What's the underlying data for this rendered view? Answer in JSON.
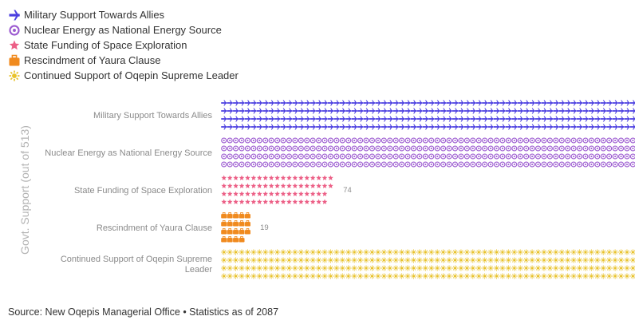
{
  "chart_data": {
    "type": "bar",
    "orientation": "horizontal",
    "style": "pictogram",
    "ylabel": "Govt. Support (out of 513)",
    "categories": [
      "Military Support Towards Allies",
      "Nuclear Energy as National Energy Source",
      "State Funding of Space Exploration",
      "Rescindment of Yaura Clause",
      "Continued Support of Oqepin Supreme Leader"
    ],
    "values": [
      406,
      288,
      74,
      19,
      427
    ],
    "icons": [
      "plane-icon",
      "atom-icon",
      "star-icon",
      "suitcase-icon",
      "sun-icon"
    ],
    "colors": [
      "#4b3fe0",
      "#9b59d0",
      "#ec5f86",
      "#f08a1e",
      "#e8c22b"
    ],
    "legend": {
      "position": "top-left",
      "entries": [
        "Military Support Towards Allies",
        "Nuclear Energy as National Energy Source",
        "State Funding of Space Exploration",
        "Rescindment of Yaura Clause",
        "Continued Support of Oqepin Supreme Leader"
      ]
    },
    "grid": false
  },
  "footer": {
    "source": "Source: New Oqepis Managerial Office • Statistics as of 2087"
  }
}
